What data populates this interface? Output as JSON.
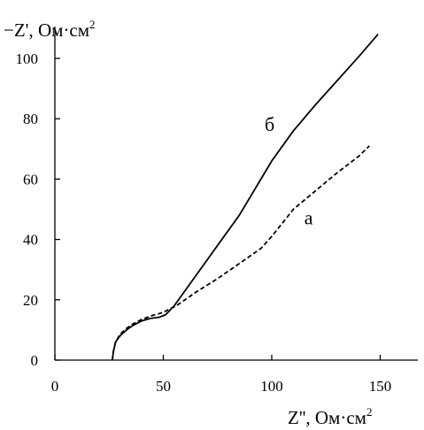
{
  "chart_data": {
    "type": "line",
    "title": "",
    "ylabel": {
      "main": "−Z', Ом·см",
      "sup": "2"
    },
    "xlabel": {
      "main": "Z'', Ом·см",
      "sup": "2"
    },
    "xlim": [
      0,
      170
    ],
    "ylim": [
      0,
      110
    ],
    "xticks": [
      0,
      50,
      100,
      150
    ],
    "yticks": [
      0,
      20,
      40,
      60,
      80,
      100
    ],
    "grid": false,
    "series": [
      {
        "name": "б",
        "style": "solid",
        "color": "#000000",
        "points": [
          [
            26.5,
            0
          ],
          [
            27,
            3
          ],
          [
            28,
            6
          ],
          [
            30,
            8
          ],
          [
            33,
            10
          ],
          [
            36,
            11.5
          ],
          [
            40,
            13
          ],
          [
            44,
            13.8
          ],
          [
            48,
            14.2
          ],
          [
            51,
            15
          ],
          [
            53,
            16.5
          ],
          [
            55,
            18
          ],
          [
            60,
            23
          ],
          [
            70,
            33
          ],
          [
            78,
            41
          ],
          [
            85,
            48
          ],
          [
            90,
            54
          ],
          [
            95,
            60
          ],
          [
            100,
            66
          ],
          [
            110,
            76
          ],
          [
            120,
            84.5
          ],
          [
            130,
            92.5
          ],
          [
            140,
            100.5
          ],
          [
            149,
            108
          ]
        ]
      },
      {
        "name": "а",
        "style": "dashed",
        "color": "#000000",
        "points": [
          [
            26.5,
            0
          ],
          [
            27,
            3
          ],
          [
            28,
            6
          ],
          [
            30,
            8.5
          ],
          [
            33,
            10.5
          ],
          [
            36,
            12
          ],
          [
            40,
            13.5
          ],
          [
            45,
            14.8
          ],
          [
            50,
            15.8
          ],
          [
            53,
            17
          ],
          [
            56,
            18
          ],
          [
            65,
            22.5
          ],
          [
            75,
            27
          ],
          [
            85,
            32
          ],
          [
            95,
            37
          ],
          [
            100,
            41
          ],
          [
            105,
            45.5
          ],
          [
            110,
            50
          ],
          [
            120,
            56
          ],
          [
            130,
            62
          ],
          [
            140,
            67.5
          ],
          [
            145,
            71
          ]
        ]
      }
    ]
  }
}
